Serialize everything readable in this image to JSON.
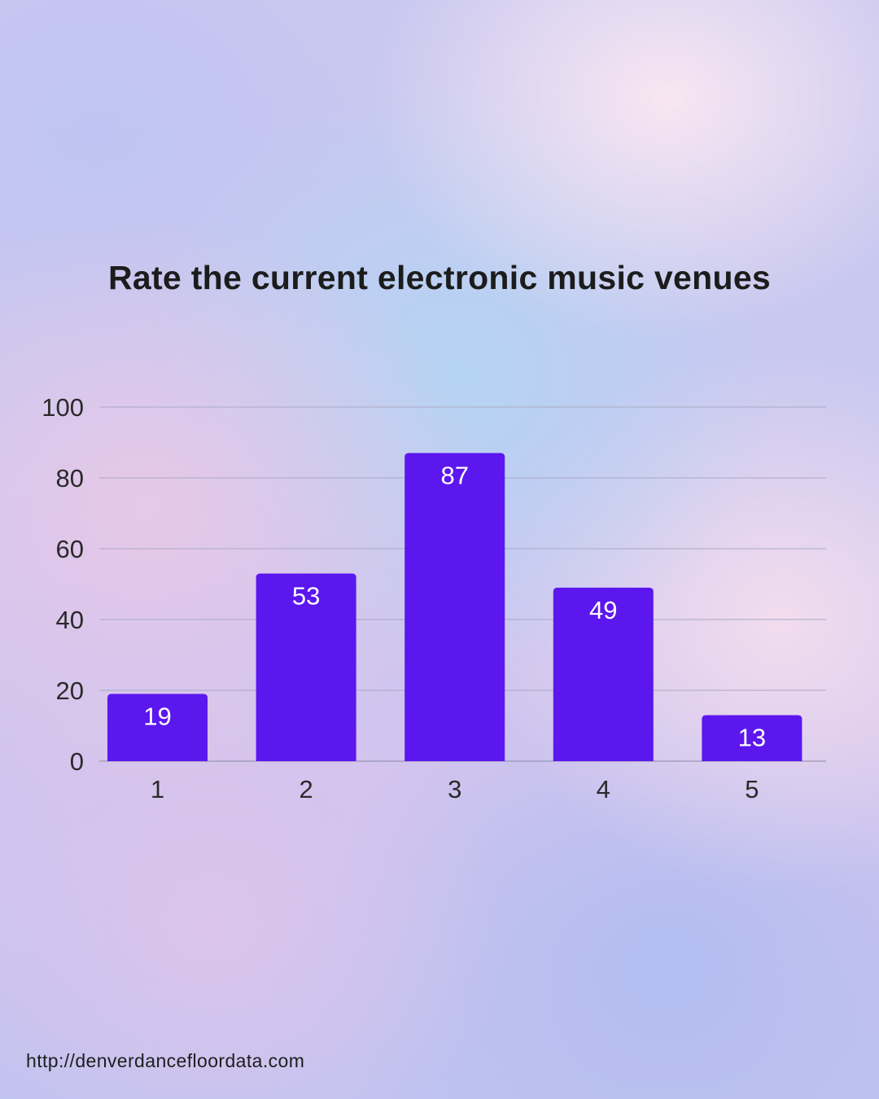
{
  "chart_data": {
    "type": "bar",
    "title": "Rate the current electronic music venues",
    "categories": [
      "1",
      "2",
      "3",
      "4",
      "5"
    ],
    "values": [
      19,
      53,
      87,
      49,
      13
    ],
    "xlabel": "",
    "ylabel": "",
    "ylim": [
      0,
      100
    ],
    "yticks": [
      0,
      20,
      40,
      60,
      80,
      100
    ],
    "grid": true,
    "data_labels": true,
    "bar_color": "#5b17ee",
    "label_color": "#ffffff"
  },
  "footer": {
    "url": "http://denverdancefloordata.com"
  }
}
